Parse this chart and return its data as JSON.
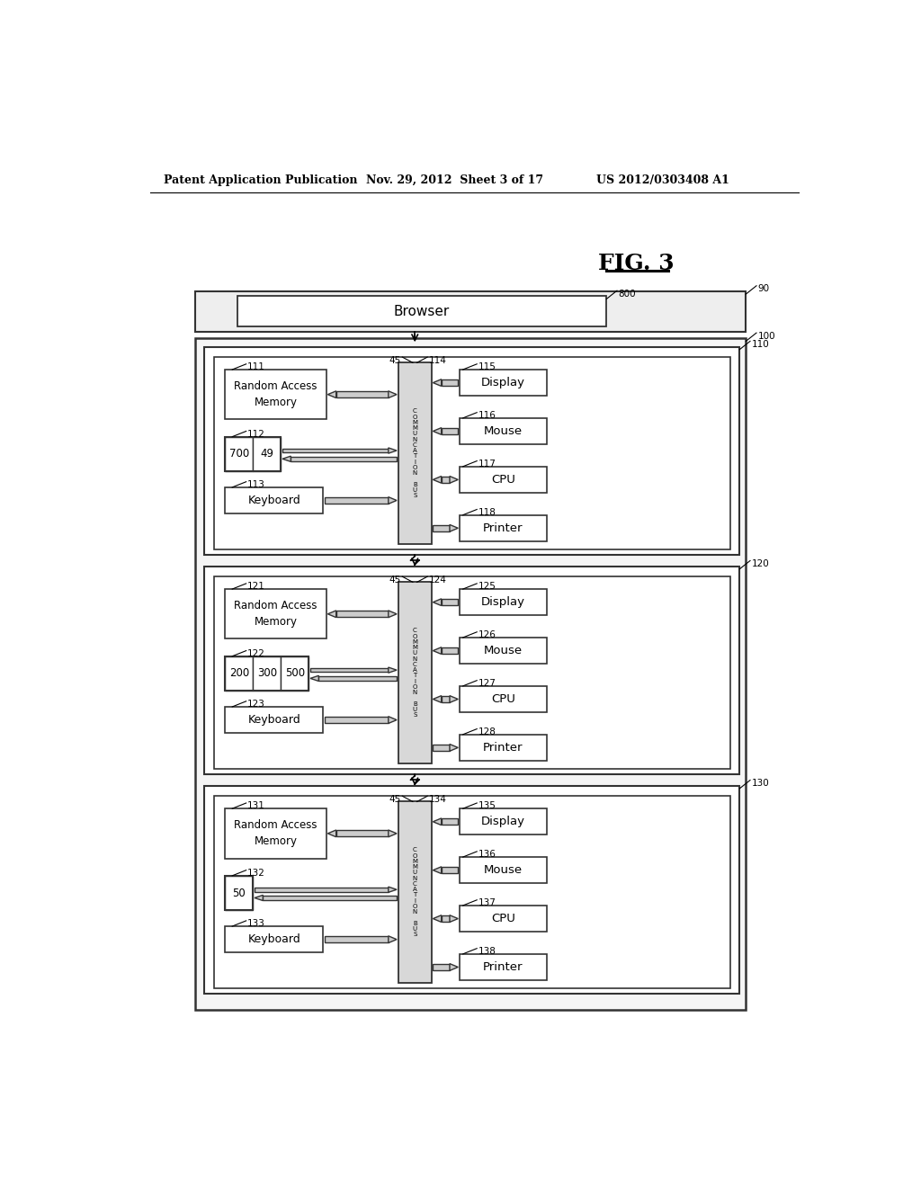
{
  "header_left": "Patent Application Publication",
  "header_mid": "Nov. 29, 2012  Sheet 3 of 17",
  "header_right": "US 2012/0303408 A1",
  "fig_title": "FIG. 3",
  "browser_text": "Browser",
  "bg_color": "#ffffff",
  "label_90": "90",
  "label_800": "800",
  "label_100": "100",
  "systems": [
    {
      "box_label": "110",
      "bus_label": "114",
      "conn_label": "45",
      "ram_label": "111",
      "mem_label": "112",
      "mem_values": [
        "700",
        "49"
      ],
      "kbd_label": "113",
      "disp_label": "115",
      "mouse_label": "116",
      "cpu_label": "117",
      "print_label": "118"
    },
    {
      "box_label": "120",
      "bus_label": "124",
      "conn_label": "45",
      "ram_label": "121",
      "mem_label": "122",
      "mem_values": [
        "200",
        "300",
        "500"
      ],
      "kbd_label": "123",
      "disp_label": "125",
      "mouse_label": "126",
      "cpu_label": "127",
      "print_label": "128"
    },
    {
      "box_label": "130",
      "bus_label": "134",
      "conn_label": "45",
      "ram_label": "131",
      "mem_label": "132",
      "mem_values": [
        "50"
      ],
      "kbd_label": "133",
      "disp_label": "135",
      "mouse_label": "136",
      "cpu_label": "137",
      "print_label": "138"
    }
  ]
}
